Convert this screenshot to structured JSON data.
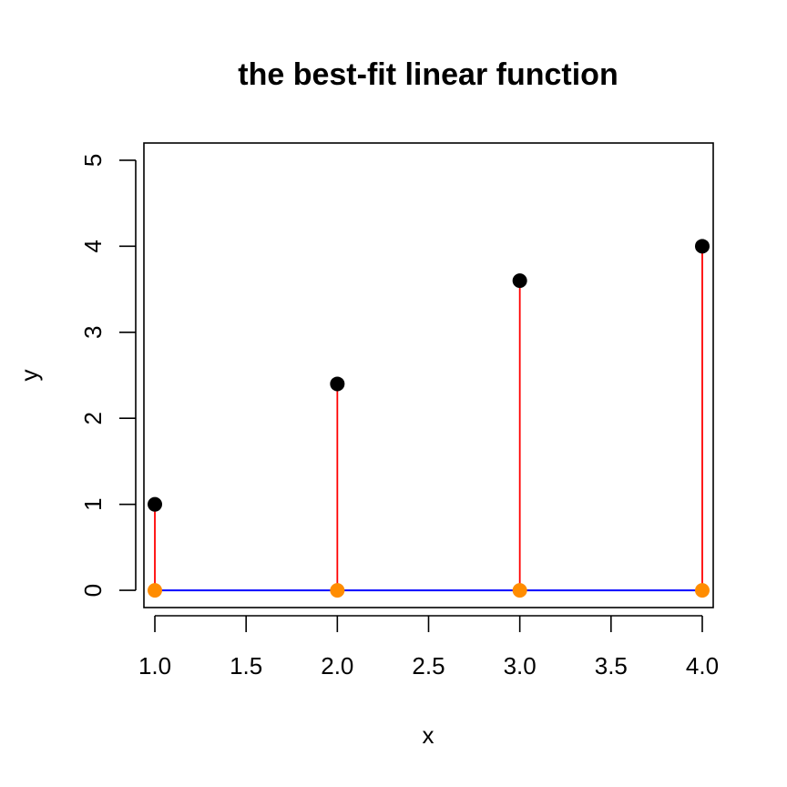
{
  "chart_data": {
    "type": "scatter",
    "title": "the best-fit linear function",
    "xlabel": "x",
    "ylabel": "y",
    "xlim": [
      0.94,
      4.06
    ],
    "ylim": [
      -0.2,
      5.2
    ],
    "x_ticks": [
      1.0,
      1.5,
      2.0,
      2.5,
      3.0,
      3.5,
      4.0
    ],
    "x_tick_labels": [
      "1.0",
      "1.5",
      "2.0",
      "2.5",
      "3.0",
      "3.5",
      "4.0"
    ],
    "y_ticks": [
      0,
      1,
      2,
      3,
      4,
      5
    ],
    "y_tick_labels": [
      "0",
      "1",
      "2",
      "3",
      "4",
      "5"
    ],
    "grid": false,
    "series": [
      {
        "x": [
          1,
          2,
          3,
          4
        ],
        "y": [
          1.0,
          2.4,
          3.6,
          4.0
        ],
        "color": "#000000",
        "marker": "filled-circle"
      },
      {
        "x": [
          1,
          2,
          3,
          4
        ],
        "y": [
          0,
          0,
          0,
          0
        ],
        "color": "#FF8C00",
        "marker": "filled-circle"
      }
    ],
    "fit_line": {
      "x": [
        1,
        4
      ],
      "y": [
        0,
        0
      ],
      "color": "#0000FF"
    },
    "residual_segments": {
      "color": "#FF0000",
      "x": [
        1,
        2,
        3,
        4
      ],
      "from_y": [
        0,
        0,
        0,
        0
      ],
      "to_y": [
        1.0,
        2.4,
        3.6,
        4.0
      ]
    }
  }
}
